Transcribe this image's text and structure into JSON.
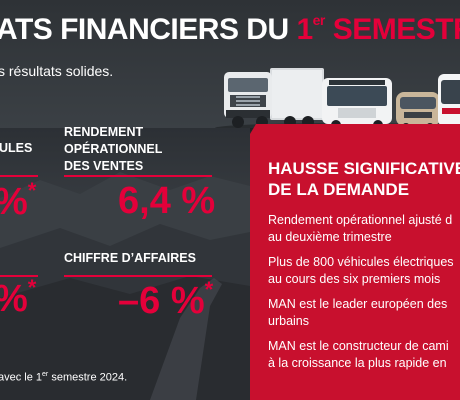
{
  "header": {
    "title_main": "ATS FINANCIERS DU ",
    "title_num": "1",
    "title_sup": "er",
    "title_tail": " SEMESTR",
    "subtitle": "s résultats solides."
  },
  "kpis": {
    "label_left_top": "ULES",
    "value_left_top": "%",
    "star_left_top": "*",
    "label_right_top_line1": "RENDEMENT",
    "label_right_top_line2": "OPÉRATIONNEL",
    "label_right_top_line3": "DES VENTES",
    "value_right_top": "6,4 %",
    "value_left_bottom": "%",
    "star_left_bottom": "*",
    "label_right_bottom": "CHIFFRE D’AFFAIRES",
    "value_right_bottom": "–6 %",
    "star_right_bottom": "*"
  },
  "footnote": {
    "pre": "avec le 1",
    "sup": "er",
    "post": " semestre 2024."
  },
  "right_panel": {
    "heading_line1": "HAUSSE SIGNIFICATIVE",
    "heading_line2": "DE LA DEMANDE",
    "items": [
      {
        "line1": "Rendement opérationnel ajusté d",
        "line2": "au deuxième trimestre"
      },
      {
        "line1": "Plus de 800 véhicules électriques",
        "line2": "au cours des six premiers mois"
      },
      {
        "line1": "MAN est le leader européen des",
        "line2": "urbains"
      },
      {
        "line1": "MAN est le constructeur de cami",
        "line2": "à la croissance la plus rapide en"
      }
    ]
  },
  "colors": {
    "accent": "#e4003a",
    "panel_red": "#c8102e",
    "dark": "#2e3236"
  },
  "vehicles": [
    "truck-image",
    "bus-image",
    "van-image",
    "coach-image"
  ]
}
